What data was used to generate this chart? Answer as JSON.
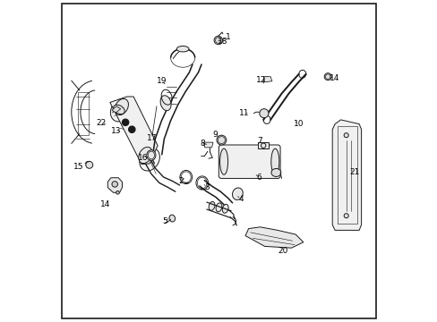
{
  "background_color": "#ffffff",
  "border_color": "#000000",
  "border_linewidth": 1.2,
  "line_color": "#1a1a1a",
  "label_positions": {
    "1": [
      0.515,
      0.895,
      0.5,
      0.88
    ],
    "2": [
      0.39,
      0.43,
      0.4,
      0.445
    ],
    "3": [
      0.455,
      0.415,
      0.448,
      0.432
    ],
    "4": [
      0.565,
      0.385,
      0.553,
      0.395
    ],
    "5": [
      0.34,
      0.315,
      0.352,
      0.328
    ],
    "6": [
      0.62,
      0.455,
      0.608,
      0.468
    ],
    "7": [
      0.625,
      0.565,
      0.612,
      0.57
    ],
    "8": [
      0.455,
      0.558,
      0.47,
      0.565
    ],
    "9": [
      0.49,
      0.585,
      0.502,
      0.588
    ],
    "10": [
      0.745,
      0.62,
      0.73,
      0.628
    ],
    "11": [
      0.582,
      0.645,
      0.596,
      0.652
    ],
    "12": [
      0.635,
      0.75,
      0.652,
      0.758
    ],
    "13": [
      0.188,
      0.588,
      0.205,
      0.592
    ],
    "14l": [
      0.152,
      0.37,
      0.167,
      0.378
    ],
    "14r": [
      0.858,
      0.758,
      0.843,
      0.762
    ],
    "15": [
      0.07,
      0.485,
      0.088,
      0.49
    ],
    "16": [
      0.272,
      0.512,
      0.288,
      0.516
    ],
    "17": [
      0.298,
      0.572,
      0.312,
      0.575
    ],
    "18": [
      0.518,
      0.872,
      0.503,
      0.875
    ],
    "19": [
      0.328,
      0.745,
      0.34,
      0.732
    ],
    "20": [
      0.7,
      0.225,
      0.685,
      0.238
    ],
    "21": [
      0.92,
      0.47,
      0.905,
      0.478
    ],
    "22": [
      0.14,
      0.62,
      0.158,
      0.615
    ]
  }
}
